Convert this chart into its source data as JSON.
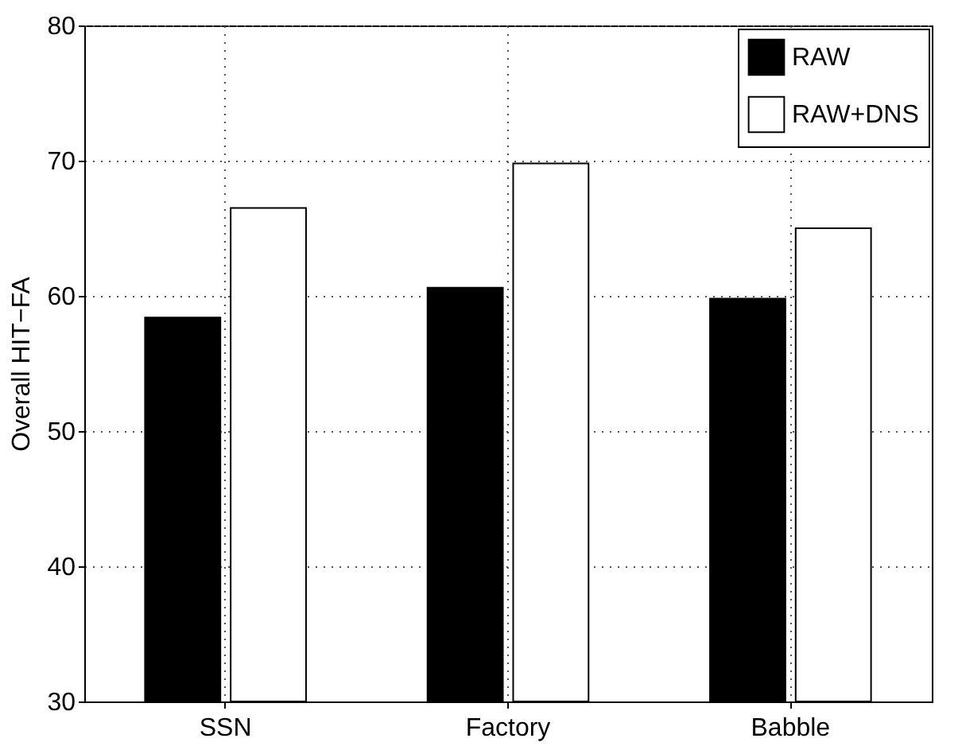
{
  "chart_data": {
    "type": "bar",
    "ylabel": "Overall HIT−FA",
    "categories": [
      "SSN",
      "Factory",
      "Babble"
    ],
    "series": [
      {
        "name": "RAW",
        "color": "#000000",
        "values": [
          58.4,
          60.6,
          59.8
        ]
      },
      {
        "name": "RAW+DNS",
        "color": "#ffffff",
        "values": [
          66.5,
          69.8,
          65.0
        ]
      }
    ],
    "ylim": [
      30,
      80
    ],
    "yticks": [
      30,
      40,
      50,
      60,
      70,
      80
    ],
    "grid": true,
    "legend": "top right"
  }
}
